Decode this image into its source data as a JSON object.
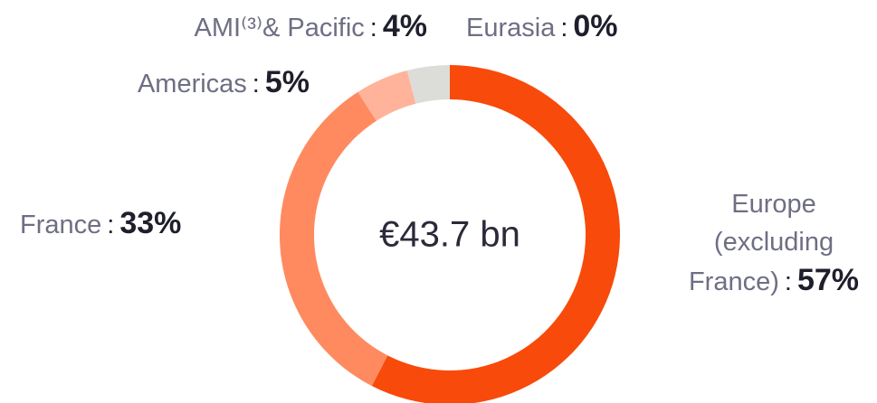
{
  "chart_data": {
    "type": "donut",
    "center_label": "€43.7 bn",
    "separator": ":",
    "series": [
      {
        "name": "Europe (excluding France)",
        "values": [
          57
        ],
        "value_labels": [
          "57%"
        ],
        "color": "#f84a0a"
      },
      {
        "name": "France",
        "values": [
          33
        ],
        "value_labels": [
          "33%"
        ],
        "color": "#ff8a60"
      },
      {
        "name": "Americas",
        "values": [
          5
        ],
        "value_labels": [
          "5%"
        ],
        "color": "#ffb39a"
      },
      {
        "name": "AMI⁽³⁾& Pacific",
        "values": [
          4
        ],
        "value_labels": [
          "4%"
        ],
        "color": "#dcdcd8"
      },
      {
        "name": "Eurasia",
        "values": [
          0
        ],
        "value_labels": [
          "0%"
        ],
        "color": "#c8c8c4"
      }
    ]
  }
}
